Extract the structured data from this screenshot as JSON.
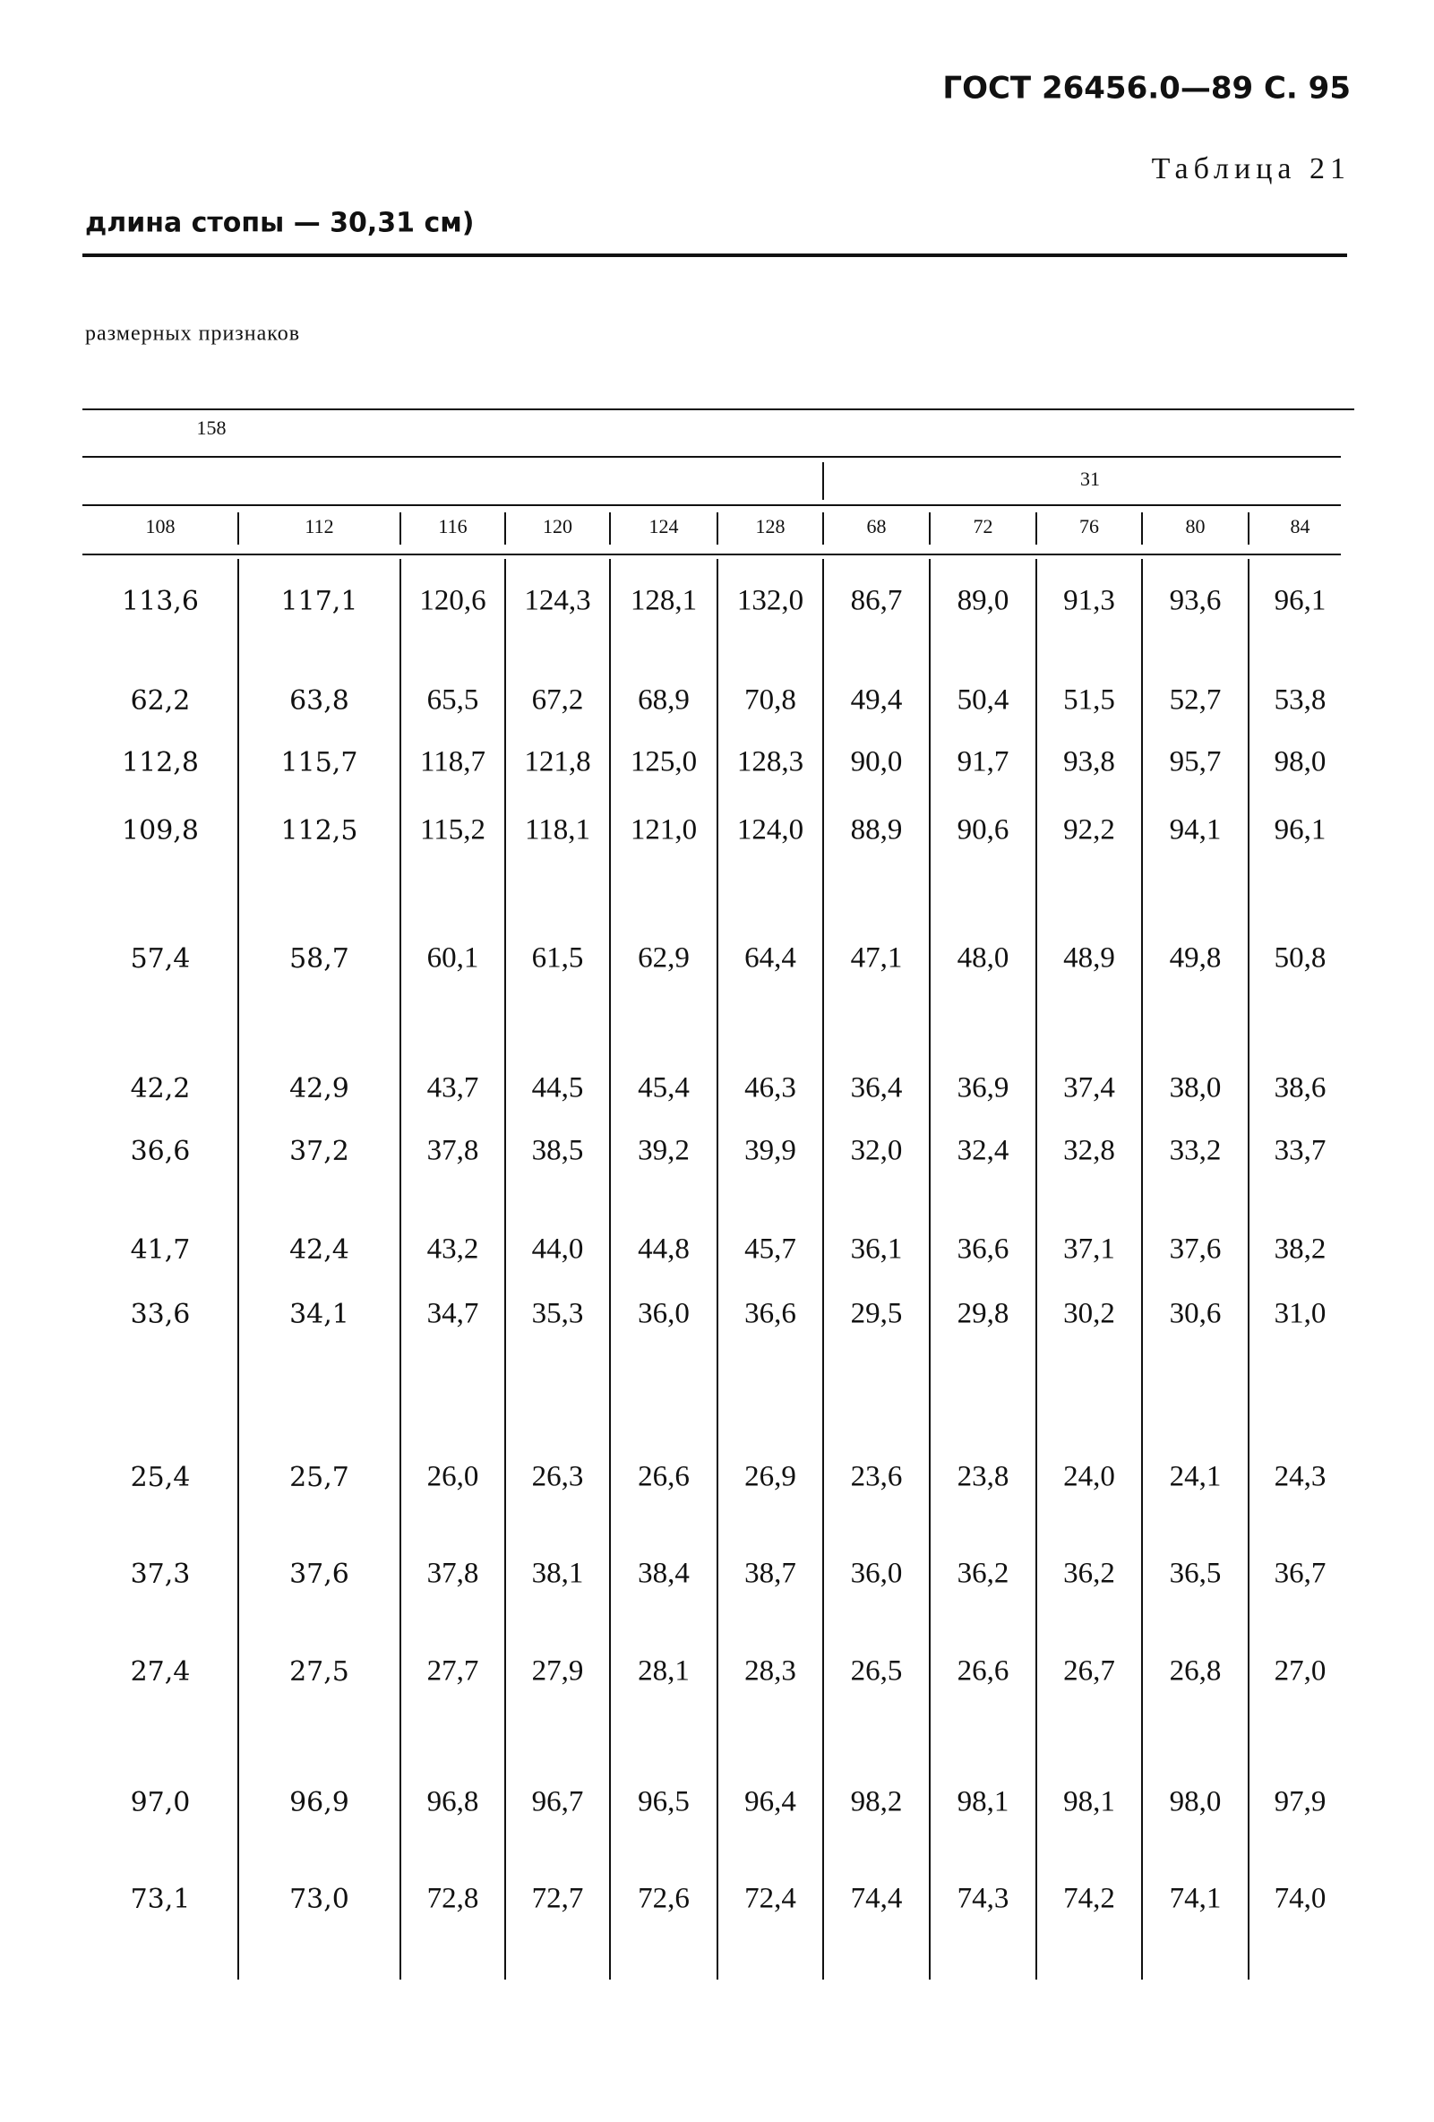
{
  "page_header": "ГОСТ 26456.0—89 С. 95",
  "table_caption": "Таблица 21",
  "title": "длина стопы — 30,31 см)",
  "subtitle": "размерных признаков",
  "table": {
    "group_header": "158",
    "subgroup_header": "31",
    "columns": [
      "108",
      "112",
      "116",
      "120",
      "124",
      "128",
      "68",
      "72",
      "76",
      "80",
      "84"
    ],
    "rows": [
      [
        "113,6",
        "117,1",
        "120,6",
        "124,3",
        "128,1",
        "132,0",
        "86,7",
        "89,0",
        "91,3",
        "93,6",
        "96,1"
      ],
      [
        "62,2",
        "63,8",
        "65,5",
        "67,2",
        "68,9",
        "70,8",
        "49,4",
        "50,4",
        "51,5",
        "52,7",
        "53,8"
      ],
      [
        "112,8",
        "115,7",
        "118,7",
        "121,8",
        "125,0",
        "128,3",
        "90,0",
        "91,7",
        "93,8",
        "95,7",
        "98,0"
      ],
      [
        "109,8",
        "112,5",
        "115,2",
        "118,1",
        "121,0",
        "124,0",
        "88,9",
        "90,6",
        "92,2",
        "94,1",
        "96,1"
      ],
      [
        "57,4",
        "58,7",
        "60,1",
        "61,5",
        "62,9",
        "64,4",
        "47,1",
        "48,0",
        "48,9",
        "49,8",
        "50,8"
      ],
      [
        "42,2",
        "42,9",
        "43,7",
        "44,5",
        "45,4",
        "46,3",
        "36,4",
        "36,9",
        "37,4",
        "38,0",
        "38,6"
      ],
      [
        "36,6",
        "37,2",
        "37,8",
        "38,5",
        "39,2",
        "39,9",
        "32,0",
        "32,4",
        "32,8",
        "33,2",
        "33,7"
      ],
      [
        "41,7",
        "42,4",
        "43,2",
        "44,0",
        "44,8",
        "45,7",
        "36,1",
        "36,6",
        "37,1",
        "37,6",
        "38,2"
      ],
      [
        "33,6",
        "34,1",
        "34,7",
        "35,3",
        "36,0",
        "36,6",
        "29,5",
        "29,8",
        "30,2",
        "30,6",
        "31,0"
      ],
      [
        "25,4",
        "25,7",
        "26,0",
        "26,3",
        "26,6",
        "26,9",
        "23,6",
        "23,8",
        "24,0",
        "24,1",
        "24,3"
      ],
      [
        "37,3",
        "37,6",
        "37,8",
        "38,1",
        "38,4",
        "38,7",
        "36,0",
        "36,2",
        "36,2",
        "36,5",
        "36,7"
      ],
      [
        "27,4",
        "27,5",
        "27,7",
        "27,9",
        "28,1",
        "28,3",
        "26,5",
        "26,6",
        "26,7",
        "26,8",
        "27,0"
      ],
      [
        "97,0",
        "96,9",
        "96,8",
        "96,7",
        "96,5",
        "96,4",
        "98,2",
        "98,1",
        "98,1",
        "98,0",
        "97,9"
      ],
      [
        "73,1",
        "73,0",
        "72,8",
        "72,7",
        "72,6",
        "72,4",
        "74,4",
        "74,3",
        "74,2",
        "74,1",
        "74,0"
      ]
    ]
  }
}
